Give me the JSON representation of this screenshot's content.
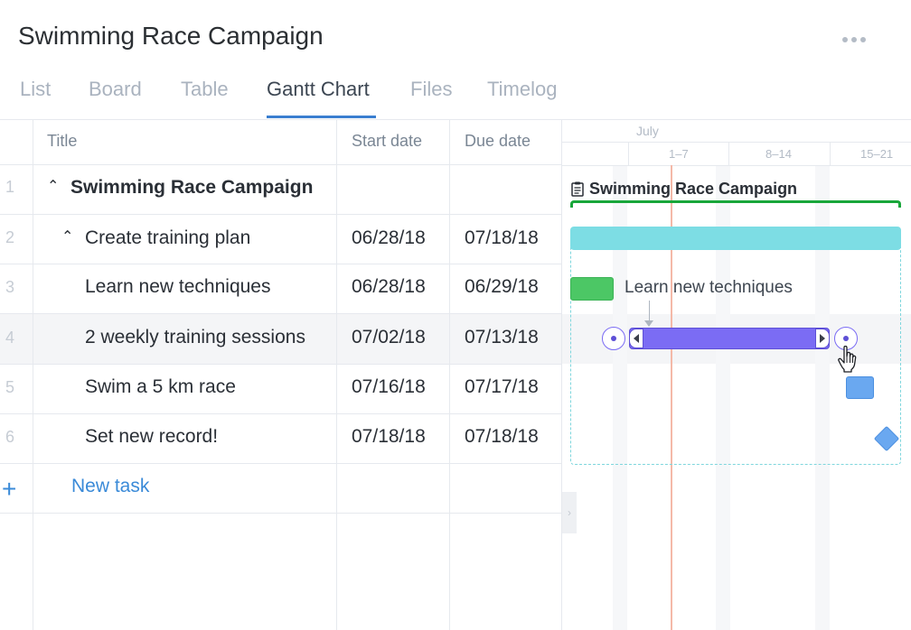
{
  "project": {
    "title": "Swimming Race Campaign"
  },
  "tabs": [
    {
      "label": "List"
    },
    {
      "label": "Board"
    },
    {
      "label": "Table"
    },
    {
      "label": "Gantt Chart",
      "active": true
    },
    {
      "label": "Files"
    },
    {
      "label": "Timelog"
    }
  ],
  "columns": {
    "title": "Title",
    "start": "Start date",
    "due": "Due date"
  },
  "rows": [
    {
      "num": "1",
      "title": "Swimming Race Campaign",
      "start": "",
      "due": ""
    },
    {
      "num": "2",
      "title": "Create training plan",
      "start": "06/28/18",
      "due": "07/18/18"
    },
    {
      "num": "3",
      "title": "Learn new techniques",
      "start": "06/28/18",
      "due": "06/29/18"
    },
    {
      "num": "4",
      "title": "2 weekly training sessions",
      "start": "07/02/18",
      "due": "07/13/18"
    },
    {
      "num": "5",
      "title": "Swim a 5 km race",
      "start": "07/16/18",
      "due": "07/17/18"
    },
    {
      "num": "6",
      "title": "Set new record!",
      "start": "07/18/18",
      "due": "07/18/18"
    }
  ],
  "new_task": {
    "plus": "+",
    "label": "New task"
  },
  "gantt": {
    "month": "July",
    "weeks": [
      "1–7",
      "8–14",
      "15–21"
    ],
    "project_label": "Swimming Race Campaign",
    "task_label": "Learn new techniques",
    "colors": {
      "project": "#19a63a",
      "parent_task": "#7ddde4",
      "task_green": "#4cc765",
      "task_purple": "#7b6cf4",
      "task_blue": "#6aa8f0",
      "today_line": "#f4b9a8"
    }
  }
}
